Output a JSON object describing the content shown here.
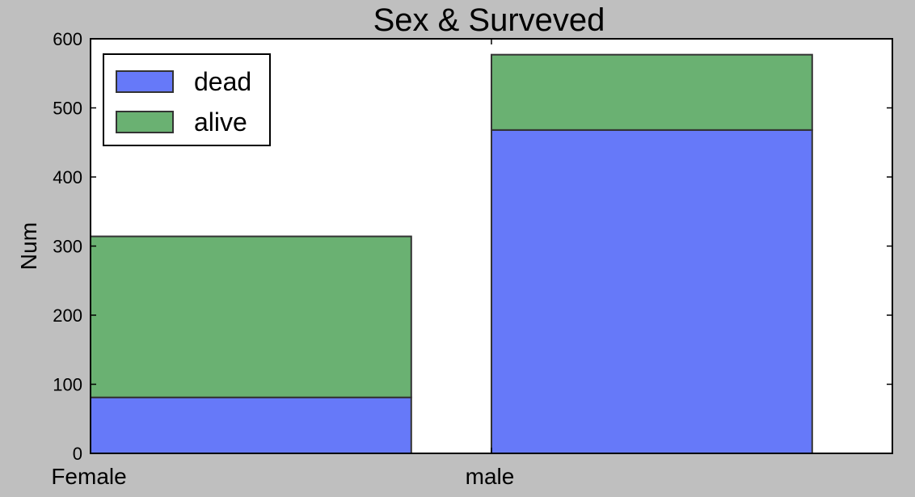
{
  "figure": {
    "background_color": "#bfbfbf",
    "plot_background_color": "#ffffff"
  },
  "chart_data": {
    "type": "bar",
    "stacked": true,
    "title": "Sex & Surveved",
    "xlabel": "",
    "ylabel": "Num",
    "categories": [
      "Female",
      "male"
    ],
    "series": [
      {
        "name": "dead",
        "values": [
          81,
          468
        ],
        "color": "#6679f9"
      },
      {
        "name": "alive",
        "values": [
          233,
          109
        ],
        "color": "#6ab172"
      }
    ],
    "ylim": [
      0,
      600
    ],
    "y_ticks": [
      0,
      100,
      200,
      300,
      400,
      500,
      600
    ],
    "grid": false,
    "legend_placement": "top-left"
  }
}
